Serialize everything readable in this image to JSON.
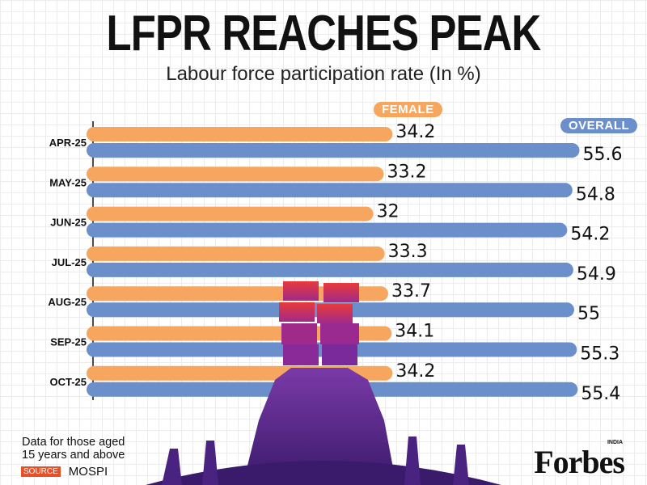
{
  "chart_data": {
    "type": "bar",
    "orientation": "horizontal",
    "title": "LFPR REACHES PEAK",
    "subtitle": "Labour force participation rate (In %)",
    "categories": [
      "APR-25",
      "MAY-25",
      "JUN-25",
      "JUL-25",
      "AUG-25",
      "SEP-25",
      "OCT-25"
    ],
    "series": [
      {
        "name": "FEMALE",
        "color": "#f7a660",
        "values": [
          34.2,
          33.2,
          32,
          33.3,
          33.7,
          34.1,
          34.2
        ]
      },
      {
        "name": "OVERALL",
        "color": "#6b8fcb",
        "values": [
          55.6,
          54.8,
          54.2,
          54.9,
          55,
          55.3,
          55.4
        ]
      }
    ],
    "xlim": [
      0,
      60
    ],
    "grid": true,
    "legend_placement": "inline-top"
  },
  "footer": {
    "note_line1": "Data for those aged",
    "note_line2": "15 years and above",
    "source_label": "SOURCE",
    "source": "MOSPI",
    "brand": "Forbes",
    "brand_sub": "INDIA"
  }
}
